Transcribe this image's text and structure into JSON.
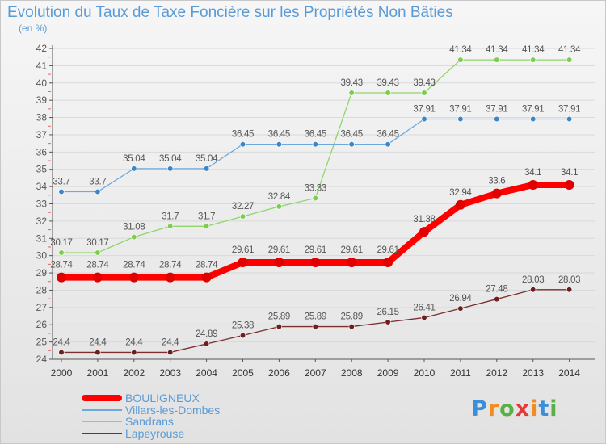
{
  "page": {
    "title": "Evolution du Taux de Taxe Foncière sur les Propriétés Non Bâties",
    "unit": "(en %)"
  },
  "logo": {
    "text": "Proxiti",
    "letter_colors": [
      "#3d8ed8",
      "#f28b20",
      "#58b046",
      "#e33b3b",
      "#f28b20",
      "#3d8ed8",
      "#58b046"
    ]
  },
  "colors": {
    "accent": "#5b9bd5",
    "axis": "#555555",
    "grid": "#d9d9d9"
  },
  "chart_data": {
    "type": "line",
    "title": "Evolution du Taux de Taxe Foncière sur les Propriétés Non Bâties",
    "ylabel": "(en %)",
    "xlabel": "",
    "ylim": [
      24,
      42
    ],
    "yticks": [
      24,
      25,
      26,
      27,
      28,
      29,
      30,
      31,
      32,
      33,
      34,
      35,
      36,
      37,
      38,
      39,
      40,
      41,
      42
    ],
    "grid": "horizontal",
    "legend_position": "bottom-left",
    "categories": [
      "2000",
      "2001",
      "2002",
      "2003",
      "2004",
      "2005",
      "2006",
      "2007",
      "2008",
      "2009",
      "2010",
      "2011",
      "2012",
      "2013",
      "2014"
    ],
    "series": [
      {
        "name": "Lapeyrouse",
        "color": "#7b2e2e",
        "marker": "#6b1f1f",
        "values": [
          24.4,
          24.4,
          24.4,
          24.4,
          24.89,
          25.38,
          25.89,
          25.89,
          25.89,
          26.15,
          26.41,
          26.94,
          27.48,
          28.03,
          28.03
        ],
        "labels": [
          "24.4",
          "24.4",
          "24.4",
          "24.4",
          "24.89",
          "25.38",
          "25.89",
          "25.89",
          "25.89",
          "26.15",
          "26.41",
          "26.94",
          "27.48",
          "28.03",
          "28.03"
        ],
        "emphasis": false
      },
      {
        "name": "Sandrans",
        "color": "#8ed66a",
        "marker": "#7ccc4e",
        "values": [
          30.17,
          30.17,
          31.08,
          31.7,
          31.7,
          32.27,
          32.84,
          33.33,
          39.43,
          39.43,
          39.43,
          41.34,
          41.34,
          41.34,
          41.34
        ],
        "labels": [
          "30.17",
          "30.17",
          "31.08",
          "31.7",
          "31.7",
          "32.27",
          "32.84",
          "33.33",
          "39.43",
          "39.43",
          "39.43",
          "41.34",
          "41.34",
          "41.34",
          "41.34"
        ],
        "emphasis": false
      },
      {
        "name": "Villars-les-Dombes",
        "color": "#6fa8dc",
        "marker": "#3d85c6",
        "values": [
          33.7,
          33.7,
          35.04,
          35.04,
          35.04,
          36.45,
          36.45,
          36.45,
          36.45,
          36.45,
          37.91,
          37.91,
          37.91,
          37.91,
          37.91
        ],
        "labels": [
          "33.7",
          "33.7",
          "35.04",
          "35.04",
          "35.04",
          "36.45",
          "36.45",
          "36.45",
          "36.45",
          "36.45",
          "37.91",
          "37.91",
          "37.91",
          "37.91",
          "37.91"
        ],
        "emphasis": false
      },
      {
        "name": "BOULIGNEUX",
        "color": "#ff0000",
        "marker": "#e00000",
        "values": [
          28.74,
          28.74,
          28.74,
          28.74,
          28.74,
          29.61,
          29.61,
          29.61,
          29.61,
          29.61,
          31.38,
          32.94,
          33.6,
          34.1,
          34.1
        ],
        "labels": [
          "28.74",
          "28.74",
          "28.74",
          "28.74",
          "28.74",
          "29.61",
          "29.61",
          "29.61",
          "29.61",
          "29.61",
          "31.38",
          "32.94",
          "33.6",
          "34.1",
          "34.1"
        ],
        "emphasis": true
      }
    ],
    "legend_order": [
      "BOULIGNEUX",
      "Villars-les-Dombes",
      "Sandrans",
      "Lapeyrouse"
    ]
  }
}
